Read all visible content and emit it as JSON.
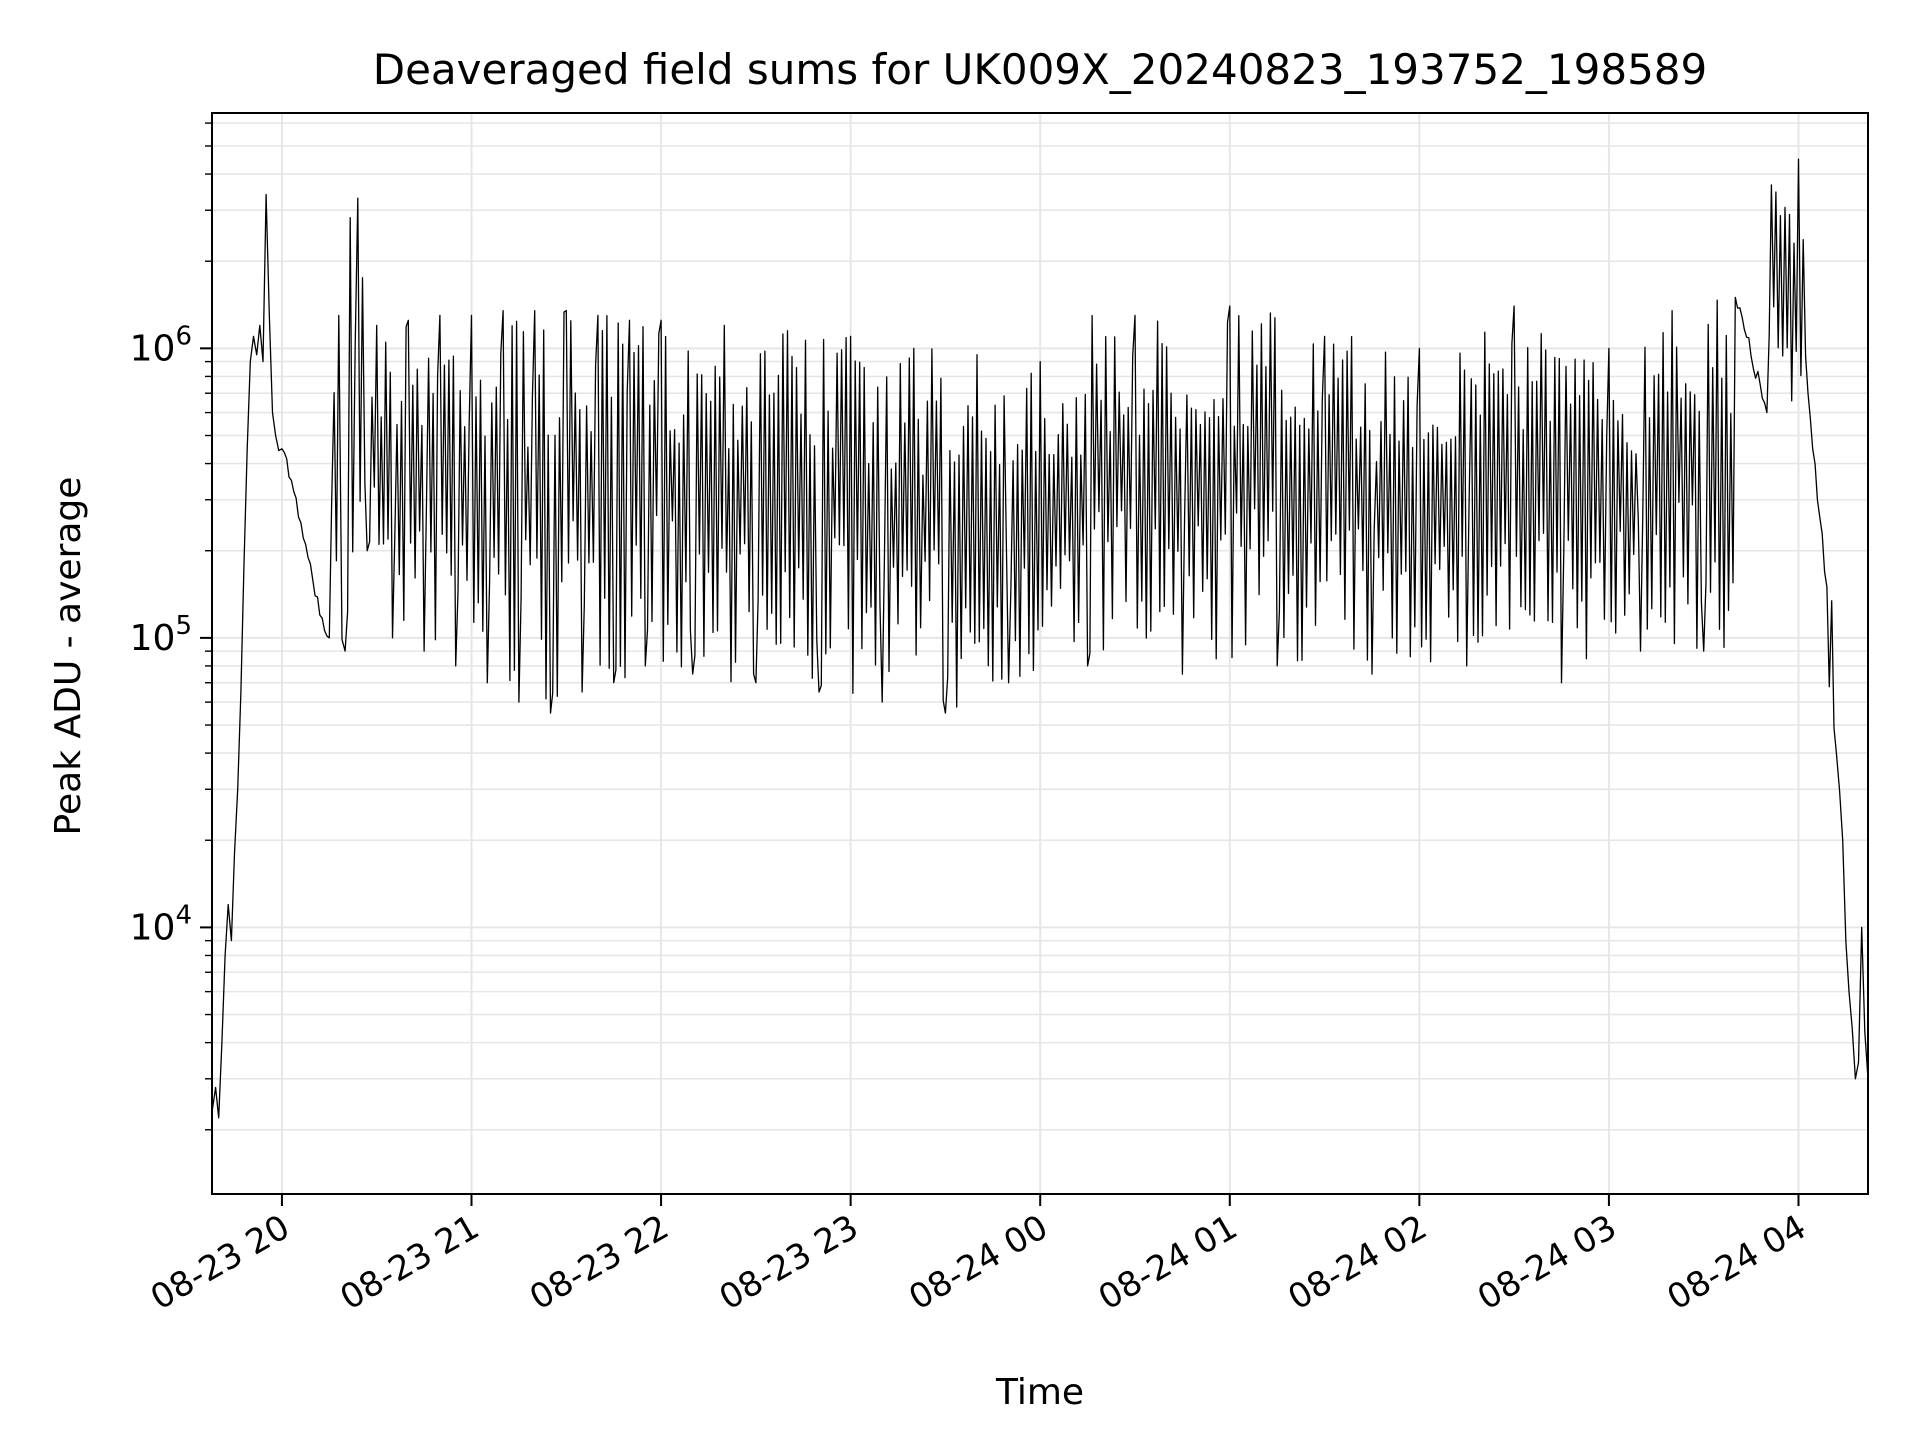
{
  "chart_data": {
    "type": "line",
    "title": "Deaveraged field sums for UK009X_20240823_193752_198589",
    "xlabel": "Time",
    "ylabel": "Peak ADU - average",
    "y_scale": "log",
    "ylim": [
      1200,
      6500000
    ],
    "xlim": [
      "2024-08-23 19:37:52",
      "2024-08-24 04:22:00"
    ],
    "grid": true,
    "legend": "none",
    "line_color": "#000000",
    "grid_color": "#e6e6e6",
    "x_ticks": [
      {
        "value": "2024-08-23 20:00",
        "label": "08-23 20"
      },
      {
        "value": "2024-08-23 21:00",
        "label": "08-23 21"
      },
      {
        "value": "2024-08-23 22:00",
        "label": "08-23 22"
      },
      {
        "value": "2024-08-23 23:00",
        "label": "08-23 23"
      },
      {
        "value": "2024-08-24 00:00",
        "label": "08-24 00"
      },
      {
        "value": "2024-08-24 01:00",
        "label": "08-24 01"
      },
      {
        "value": "2024-08-24 02:00",
        "label": "08-24 02"
      },
      {
        "value": "2024-08-24 03:00",
        "label": "08-24 03"
      },
      {
        "value": "2024-08-24 04:00",
        "label": "08-24 04"
      }
    ],
    "y_ticks": [
      {
        "value": 10000,
        "base": "10",
        "exp": "4"
      },
      {
        "value": 100000,
        "base": "10",
        "exp": "5"
      },
      {
        "value": 1000000,
        "base": "10",
        "exp": "6"
      }
    ],
    "series": [
      {
        "x": [
          "2024-08-23 19:37:52",
          "2024-08-23 19:39:00",
          "2024-08-23 19:40:00",
          "2024-08-23 19:41:00",
          "2024-08-23 19:42:00",
          "2024-08-23 19:43:00",
          "2024-08-23 19:44:00",
          "2024-08-23 19:45:00",
          "2024-08-23 19:46:00",
          "2024-08-23 19:47:00",
          "2024-08-23 19:48:00",
          "2024-08-23 19:49:00",
          "2024-08-23 19:50:00",
          "2024-08-23 19:51:00",
          "2024-08-23 19:52:00",
          "2024-08-23 19:53:00",
          "2024-08-23 19:54:00",
          "2024-08-23 19:55:00",
          "2024-08-23 19:57:00",
          "2024-08-23 19:58:00",
          "2024-08-23 20:00:00",
          "2024-08-23 20:03:00",
          "2024-08-23 20:06:00",
          "2024-08-23 20:09:00",
          "2024-08-23 20:12:00",
          "2024-08-23 20:15:00",
          "2024-08-23 20:18:00",
          "2024-08-23 20:20:00",
          "2024-08-23 20:24:00",
          "2024-08-23 20:27:00",
          "2024-08-23 20:30:00",
          "2024-08-23 20:35:00",
          "2024-08-23 20:40:00",
          "2024-08-23 20:45:00",
          "2024-08-23 20:50:00",
          "2024-08-23 20:55:00",
          "2024-08-23 21:00:00",
          "2024-08-23 21:05:00",
          "2024-08-23 21:10:00",
          "2024-08-23 21:15:00",
          "2024-08-23 21:20:00",
          "2024-08-23 21:25:00",
          "2024-08-23 21:30:00",
          "2024-08-23 21:35:00",
          "2024-08-23 21:40:00",
          "2024-08-23 21:45:00",
          "2024-08-23 21:50:00",
          "2024-08-23 21:55:00",
          "2024-08-23 22:00:00",
          "2024-08-23 22:10:00",
          "2024-08-23 22:20:00",
          "2024-08-23 22:30:00",
          "2024-08-23 22:40:00",
          "2024-08-23 22:50:00",
          "2024-08-23 23:00:00",
          "2024-08-23 23:10:00",
          "2024-08-23 23:20:00",
          "2024-08-23 23:30:00",
          "2024-08-23 23:40:00",
          "2024-08-23 23:50:00",
          "2024-08-24 00:00:00",
          "2024-08-24 00:15:00",
          "2024-08-24 00:30:00",
          "2024-08-24 00:45:00",
          "2024-08-24 01:00:00",
          "2024-08-24 01:15:00",
          "2024-08-24 01:30:00",
          "2024-08-24 01:45:00",
          "2024-08-24 02:00:00",
          "2024-08-24 02:15:00",
          "2024-08-24 02:30:00",
          "2024-08-24 02:45:00",
          "2024-08-24 03:00:00",
          "2024-08-24 03:10:00",
          "2024-08-24 03:20:00",
          "2024-08-24 03:30:00",
          "2024-08-24 03:40:00",
          "2024-08-24 03:50:00",
          "2024-08-24 04:00:00",
          "2024-08-24 04:03:00",
          "2024-08-24 04:06:00",
          "2024-08-24 04:09:00",
          "2024-08-24 04:12:00",
          "2024-08-24 04:14:00",
          "2024-08-24 04:16:00",
          "2024-08-24 04:18:00",
          "2024-08-24 04:20:00",
          "2024-08-24 04:22:00"
        ],
        "y": [
          2300,
          2800,
          2200,
          4000,
          8000,
          12000,
          9000,
          18000,
          30000,
          65000,
          180000,
          450000,
          900000,
          1100000,
          950000,
          1200000,
          900000,
          3400000,
          600000,
          500000,
          450000,
          350000,
          250000,
          180000,
          120000,
          100000,
          1300000,
          90000,
          3300000,
          200000,
          1200000,
          100000,
          1250000,
          90000,
          1300000,
          80000,
          1300000,
          70000,
          1350000,
          60000,
          1350000,
          55000,
          1350000,
          65000,
          1300000,
          70000,
          1250000,
          80000,
          1250000,
          75000,
          1200000,
          70000,
          1150000,
          65000,
          1100000,
          60000,
          1000000,
          55000,
          950000,
          70000,
          900000,
          80000,
          1300000,
          75000,
          1400000,
          80000,
          1100000,
          75000,
          1000000,
          80000,
          1400000,
          70000,
          1000000,
          90000,
          1350000,
          90000,
          1500000,
          600000,
          4500000,
          700000,
          300000,
          150000,
          40000,
          20000,
          6000,
          3000,
          10000,
          3000
        ]
      }
    ]
  }
}
